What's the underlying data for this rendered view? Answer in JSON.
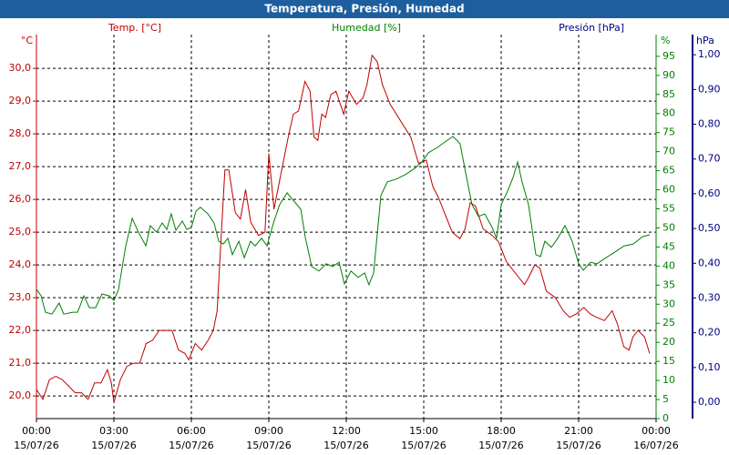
{
  "chart_data": {
    "type": "line",
    "title": "Temperatura, Presión, Humedad",
    "y_unit": "°C",
    "y_label": "Temp. [°C]",
    "y2_unit": "%",
    "y2_label": "Humedad [%]",
    "y3_unit": "hPa",
    "y3_label": "Presión [hPa]",
    "grid": true,
    "xlim": [
      0,
      24
    ],
    "xticks": [
      {
        "value": 0,
        "label": "00:00"
      },
      {
        "value": 3,
        "label": "03:00"
      },
      {
        "value": 6,
        "label": "06:00"
      },
      {
        "value": 9,
        "label": "09:00"
      },
      {
        "value": 12,
        "label": "12:00"
      },
      {
        "value": 15,
        "label": "15:00"
      },
      {
        "value": 18,
        "label": "18:00"
      },
      {
        "value": 21,
        "label": "21:00"
      },
      {
        "value": 24,
        "label": "00:00"
      }
    ],
    "xtick_dates": [
      "15/07/26",
      "15/07/26",
      "15/07/26",
      "15/07/26",
      "15/07/26",
      "15/07/26",
      "15/07/26",
      "15/07/26",
      "16/07/26"
    ],
    "ylim": [
      19.31,
      31.03
    ],
    "yticks": [
      {
        "value": 20,
        "label": "20,0"
      },
      {
        "value": 21,
        "label": "21,0"
      },
      {
        "value": 22,
        "label": "22,0"
      },
      {
        "value": 23,
        "label": "23,0"
      },
      {
        "value": 24,
        "label": "24,0"
      },
      {
        "value": 25,
        "label": "25,0"
      },
      {
        "value": 26,
        "label": "26,0"
      },
      {
        "value": 27,
        "label": "27,0"
      },
      {
        "value": 28,
        "label": "28,0"
      },
      {
        "value": 29,
        "label": "29,0"
      },
      {
        "value": 30,
        "label": "30,0"
      }
    ],
    "y2lim": [
      0,
      100.7
    ],
    "y2ticks": [
      0,
      5,
      10,
      15,
      20,
      25,
      30,
      35,
      40,
      45,
      50,
      55,
      60,
      65,
      70,
      75,
      80,
      85,
      90,
      95
    ],
    "y3lim": [
      -0.047,
      1.058
    ],
    "y3ticks": [
      {
        "value": 0,
        "label": "0,00"
      },
      {
        "value": 0.1,
        "label": "0,10"
      },
      {
        "value": 0.2,
        "label": "0,20"
      },
      {
        "value": 0.3,
        "label": "0,30"
      },
      {
        "value": 0.4,
        "label": "0,40"
      },
      {
        "value": 0.5,
        "label": "0,50"
      },
      {
        "value": 0.6,
        "label": "0,60"
      },
      {
        "value": 0.7,
        "label": "0,70"
      },
      {
        "value": 0.8,
        "label": "0,80"
      },
      {
        "value": 0.9,
        "label": "0,90"
      },
      {
        "value": 1,
        "label": "1,00"
      }
    ],
    "series": [
      {
        "name": "Temp. [°C]",
        "color": "#c00000",
        "axis": "y",
        "x": [
          0,
          0.25,
          0.5,
          0.75,
          1,
          1.25,
          1.5,
          1.75,
          2,
          2.25,
          2.5,
          2.75,
          2.9,
          3,
          3.25,
          3.5,
          3.75,
          4,
          4.25,
          4.5,
          4.75,
          5,
          5.25,
          5.5,
          5.75,
          5.9,
          6.15,
          6.4,
          6.65,
          6.85,
          7,
          7.15,
          7.3,
          7.45,
          7.7,
          7.9,
          8.1,
          8.3,
          8.6,
          8.85,
          9,
          9.2,
          9.4,
          9.75,
          9.95,
          10.15,
          10.4,
          10.6,
          10.75,
          10.9,
          11.05,
          11.2,
          11.4,
          11.6,
          11.9,
          12.1,
          12.4,
          12.65,
          12.8,
          13,
          13.2,
          13.4,
          13.7,
          14.1,
          14.5,
          14.8,
          15.1,
          15.35,
          15.6,
          15.9,
          16.1,
          16.4,
          16.6,
          16.8,
          17,
          17.3,
          17.65,
          17.9,
          18.2,
          18.4,
          18.7,
          18.9,
          19.05,
          19.3,
          19.5,
          19.75,
          20.1,
          20.4,
          20.65,
          20.9,
          21.2,
          21.45,
          21.7,
          22,
          22.3,
          22.5,
          22.75,
          22.95,
          23.1,
          23.3,
          23.55,
          23.75
        ],
        "values": [
          20.2,
          19.9,
          20.5,
          20.6,
          20.5,
          20.3,
          20.1,
          20.1,
          19.9,
          20.4,
          20.4,
          20.8,
          20.4,
          19.8,
          20.5,
          20.9,
          21.0,
          21.0,
          21.6,
          21.7,
          22.0,
          22.0,
          22.0,
          21.4,
          21.3,
          21.1,
          21.6,
          21.4,
          21.7,
          22.0,
          22.6,
          24.8,
          26.9,
          26.9,
          25.6,
          25.4,
          26.3,
          25.3,
          24.9,
          25.0,
          27.4,
          25.7,
          26.5,
          27.9,
          28.6,
          28.7,
          29.6,
          29.3,
          27.9,
          27.8,
          28.6,
          28.5,
          29.2,
          29.3,
          28.6,
          29.3,
          28.9,
          29.1,
          29.5,
          30.4,
          30.2,
          29.5,
          28.9,
          28.4,
          27.9,
          27.1,
          27.2,
          26.4,
          26.0,
          25.4,
          25.0,
          24.8,
          25.1,
          25.9,
          25.8,
          25.1,
          24.9,
          24.7,
          24.1,
          23.9,
          23.6,
          23.4,
          23.6,
          24.0,
          23.9,
          23.2,
          23.0,
          22.6,
          22.4,
          22.5,
          22.7,
          22.5,
          22.4,
          22.3,
          22.6,
          22.2,
          21.5,
          21.4,
          21.8,
          22.0,
          21.8,
          21.3
        ]
      },
      {
        "name": "Humedad [%]",
        "color": "#008000",
        "axis": "y2",
        "x": [
          0,
          0.18,
          0.35,
          0.6,
          0.88,
          1.06,
          1.41,
          1.59,
          1.84,
          2.05,
          2.29,
          2.54,
          2.82,
          3,
          3.18,
          3.46,
          3.71,
          3.95,
          4.24,
          4.41,
          4.66,
          4.87,
          5.05,
          5.22,
          5.4,
          5.65,
          5.82,
          6,
          6.18,
          6.35,
          6.64,
          6.88,
          7.06,
          7.24,
          7.41,
          7.59,
          7.84,
          8.05,
          8.29,
          8.47,
          8.72,
          8.93,
          9.18,
          9.42,
          9.71,
          9.88,
          10.24,
          10.41,
          10.66,
          10.94,
          11.22,
          11.47,
          11.72,
          11.93,
          12.18,
          12.46,
          12.71,
          12.88,
          13.06,
          13.34,
          13.59,
          13.94,
          14.29,
          14.65,
          14.93,
          15.18,
          15.53,
          15.88,
          16.13,
          16.41,
          16.66,
          16.87,
          17.12,
          17.36,
          17.65,
          17.82,
          18,
          18.25,
          18.46,
          18.64,
          18.81,
          19.06,
          19.34,
          19.52,
          19.69,
          19.94,
          20.19,
          20.47,
          20.75,
          21,
          21.18,
          21.46,
          21.71,
          22.06,
          22.41,
          22.76,
          23.12,
          23.47,
          23.75
        ],
        "values": [
          33.9,
          32.2,
          27.9,
          27.4,
          30.3,
          27.4,
          27.9,
          27.9,
          32.2,
          29.1,
          29.1,
          32.7,
          32.2,
          31,
          33.9,
          45.3,
          52.5,
          48.9,
          45.3,
          50.6,
          48.9,
          51.3,
          49.6,
          53.7,
          49.4,
          51.8,
          49.6,
          50.1,
          54.4,
          55.4,
          53.7,
          51.3,
          46.5,
          45.8,
          47.3,
          43,
          46.5,
          42.2,
          46.5,
          45.3,
          47.3,
          45.3,
          51.3,
          56.1,
          59.2,
          57.8,
          54.9,
          47.7,
          39.9,
          38.7,
          40.6,
          39.9,
          41,
          35.3,
          38.7,
          37,
          38.2,
          35.1,
          38.2,
          58.5,
          62.1,
          62.8,
          64,
          65.6,
          67.3,
          69.7,
          71.1,
          72.8,
          74,
          72.1,
          63.2,
          56.1,
          53,
          53.7,
          50.1,
          47.3,
          56.1,
          59.7,
          63.2,
          67.3,
          62.1,
          56.1,
          43,
          42.5,
          46.5,
          44.9,
          47.3,
          50.6,
          46.5,
          40.6,
          38.9,
          41,
          40.6,
          42.2,
          43.7,
          45.3,
          45.8,
          47.7,
          48.2
        ]
      }
    ]
  }
}
